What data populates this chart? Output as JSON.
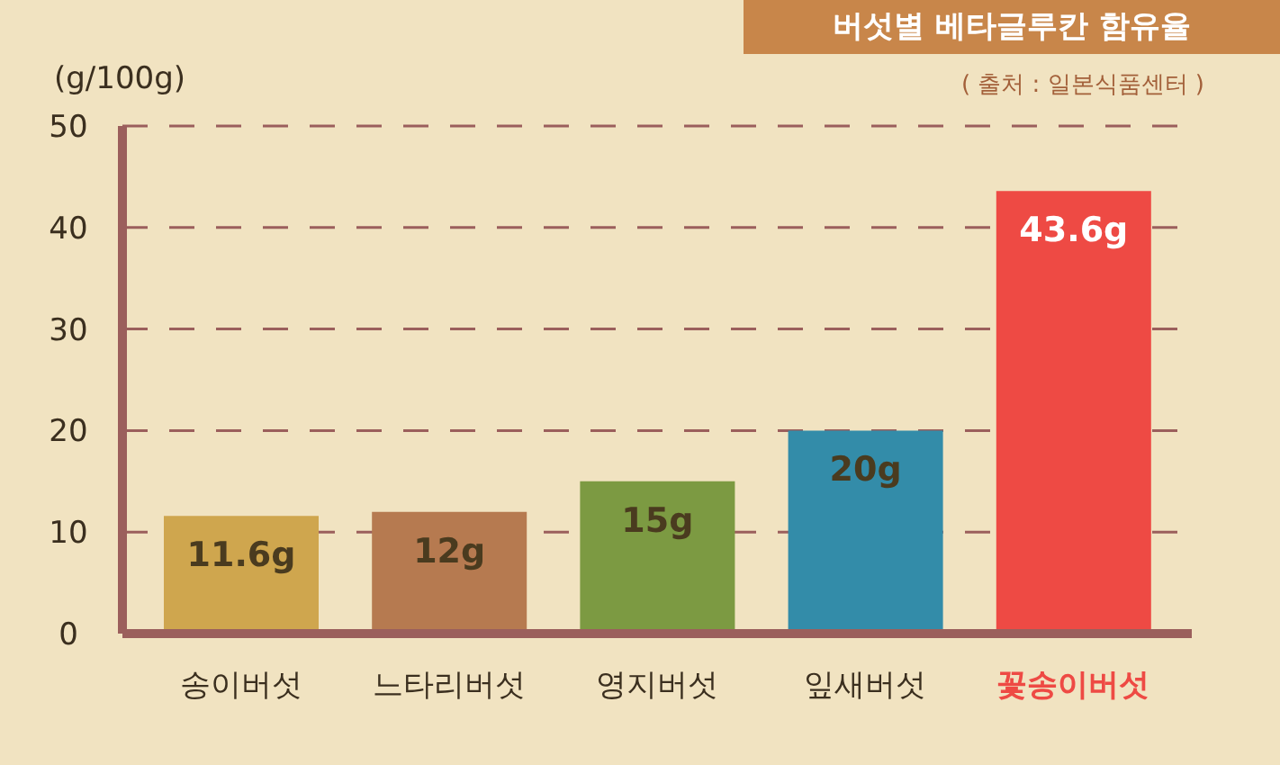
{
  "chart_data": {
    "type": "bar",
    "title": "버섯별 베타글루칸 함유율",
    "annotations": [
      "( 출처 : 일본식품센터 )"
    ],
    "ylabel": "(g/100g)",
    "categories": [
      "송이버섯",
      "느타리버섯",
      "영지버섯",
      "잎새버섯",
      "꽃송이버섯"
    ],
    "values": [
      11.6,
      12,
      15,
      20,
      43.6
    ],
    "colors": [
      "#cfa64e",
      "#b67a50",
      "#7c9a42",
      "#338ca9",
      "#ee4a44"
    ],
    "value_labels": [
      "11.6g",
      "12g",
      "15g",
      "20g",
      "43.6g"
    ],
    "ylim": [
      0,
      50
    ],
    "yticks": [
      0,
      10,
      20,
      30,
      40,
      50
    ],
    "grid": "y"
  }
}
